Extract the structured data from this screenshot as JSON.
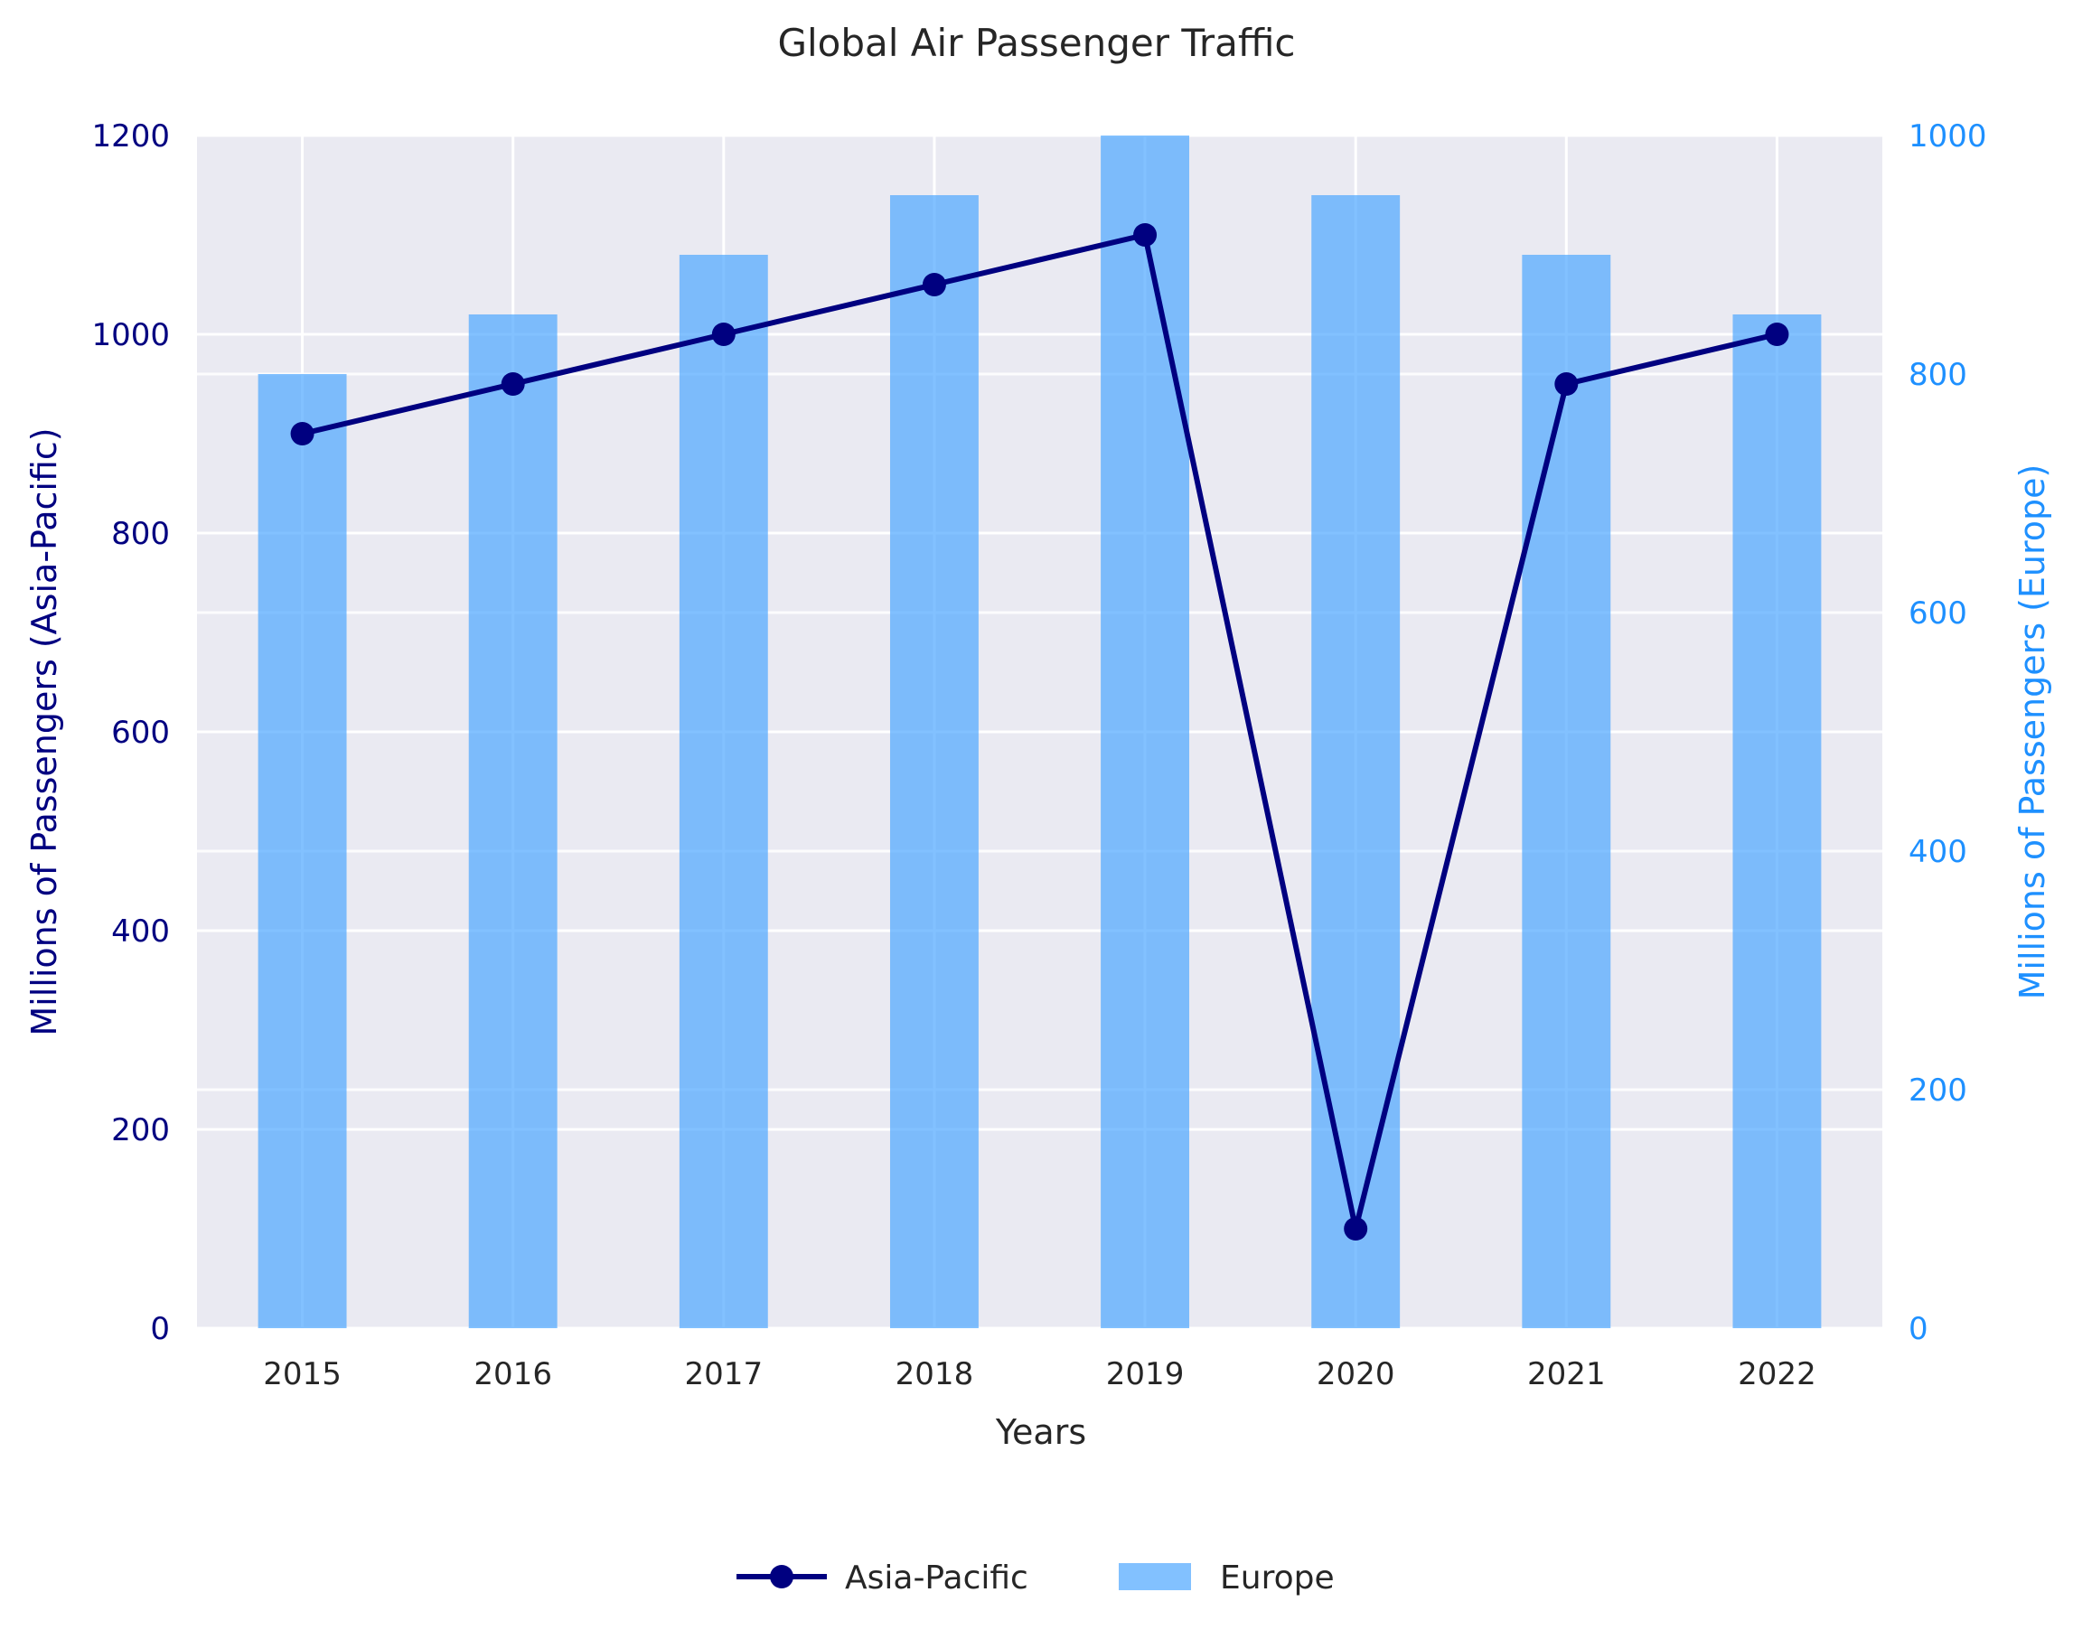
{
  "chart_data": {
    "type": "bar",
    "title": "Global Air Passenger Traffic",
    "xlabel": "Years",
    "ylabel_left": "Millions of Passengers (Asia-Pacific)",
    "ylabel_right": "Millions of Passengers (Europe)",
    "categories": [
      "2015",
      "2016",
      "2017",
      "2018",
      "2019",
      "2020",
      "2021",
      "2022"
    ],
    "left_axis": {
      "ylim": [
        0,
        1200
      ],
      "ticks": [
        "0",
        "200",
        "400",
        "600",
        "800",
        "1000",
        "1200"
      ]
    },
    "right_axis": {
      "ylim": [
        0,
        1000
      ],
      "ticks": [
        "0",
        "200",
        "400",
        "600",
        "800",
        "1000"
      ]
    },
    "grid": true,
    "legend_position": "bottom-center",
    "series": [
      {
        "name": "Asia-Pacific",
        "type": "line",
        "axis": "left",
        "color": "#000080",
        "values": [
          900,
          950,
          1000,
          1050,
          1100,
          100,
          950,
          1000
        ]
      },
      {
        "name": "Europe",
        "type": "bar",
        "axis": "right",
        "color": "#4da6ff",
        "values": [
          800,
          850,
          900,
          950,
          1000,
          950,
          900,
          850
        ]
      }
    ]
  },
  "colors": {
    "background": "#ffffff",
    "plot_background": "#eaeaf2",
    "grid": "#ffffff",
    "left_axis": "#000080",
    "right_axis": "#1e90ff",
    "text": "#262626"
  }
}
